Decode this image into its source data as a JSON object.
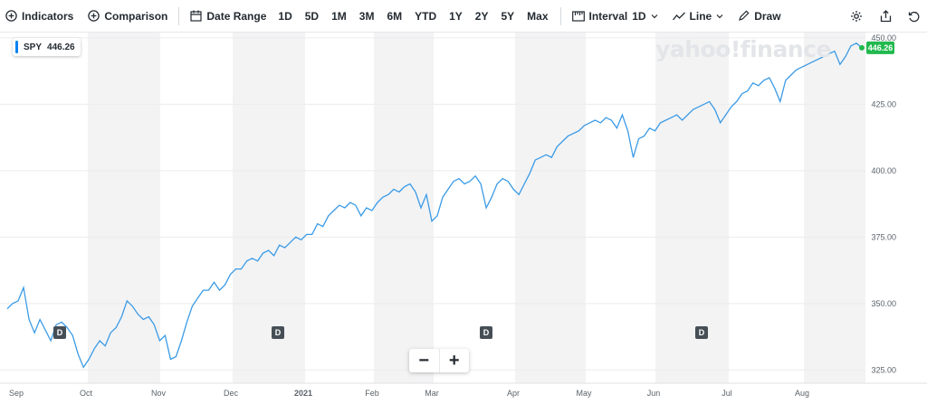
{
  "toolbar": {
    "indicators": "Indicators",
    "comparison": "Comparison",
    "date_range": "Date Range",
    "ranges": [
      "1D",
      "5D",
      "1M",
      "3M",
      "6M",
      "YTD",
      "1Y",
      "2Y",
      "5Y",
      "Max"
    ],
    "interval_label": "Interval",
    "interval_value": "1D",
    "line_label": "Line",
    "draw_label": "Draw"
  },
  "ticker": {
    "symbol": "SPY",
    "price": "446.26"
  },
  "watermark": "yahoo!finance",
  "colors": {
    "line": "#3b9be6",
    "price_tag": "#21b94e",
    "band": "#f3f3f4",
    "badge_accent": "#0081f2"
  },
  "dividend_marker": "D",
  "zoom": {
    "minus": "−",
    "plus": "+"
  },
  "chart_data": {
    "type": "line",
    "ylim": [
      320,
      452
    ],
    "y_ticks": [
      "325.00",
      "350.00",
      "375.00",
      "400.00",
      "425.00",
      "450.00"
    ],
    "x_ticks": [
      "Sep",
      "Oct",
      "Nov",
      "Dec",
      "2021",
      "Feb",
      "Mar",
      "Apr",
      "May",
      "Jun",
      "Jul",
      "Aug"
    ],
    "current_value": "446.26",
    "dividend_months": [
      "Sep",
      "Dec",
      "Mar",
      "Jun"
    ],
    "series": [
      {
        "values": [
          348,
          350,
          351,
          356,
          344,
          339,
          344,
          340,
          336,
          342,
          343,
          341,
          338,
          331,
          326,
          329,
          333,
          336,
          334,
          339,
          341,
          345,
          351,
          349,
          346,
          344,
          345,
          342,
          336,
          338,
          329,
          330,
          336,
          343,
          349,
          352,
          355,
          355,
          358,
          355,
          357,
          361,
          363,
          363,
          366,
          367,
          366,
          369,
          370,
          368,
          372,
          371,
          373,
          375,
          374,
          376,
          376,
          380,
          379,
          383,
          385,
          387,
          386,
          388,
          387,
          383,
          386,
          385,
          388,
          390,
          391,
          393,
          392,
          394,
          395,
          392,
          386,
          391,
          381,
          383,
          390,
          393,
          396,
          397,
          395,
          396,
          398,
          395,
          386,
          390,
          395,
          397,
          396,
          393,
          391,
          395,
          399,
          404,
          405,
          406,
          405,
          409,
          411,
          413,
          414,
          415,
          417,
          418,
          419,
          418,
          420,
          419,
          416,
          421,
          415,
          405,
          412,
          413,
          416,
          415,
          418,
          419,
          420,
          421,
          419,
          421,
          423,
          424,
          425,
          426,
          423,
          418,
          421,
          424,
          426,
          429,
          430,
          433,
          432,
          434,
          435,
          431,
          426,
          434,
          436,
          438,
          439,
          440,
          441,
          442,
          443,
          444,
          445,
          440,
          443,
          447,
          448,
          446.26
        ]
      }
    ]
  }
}
